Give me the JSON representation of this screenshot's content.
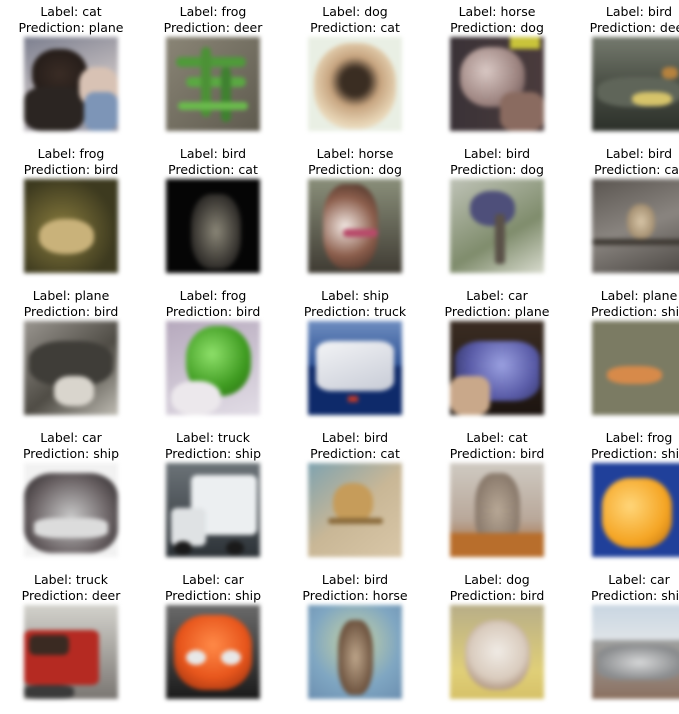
{
  "label_prefix": "Label: ",
  "prediction_prefix": "Prediction: ",
  "samples": [
    {
      "label": "cat",
      "prediction": "plane",
      "scene": "cat"
    },
    {
      "label": "frog",
      "prediction": "deer",
      "scene": "frog_green"
    },
    {
      "label": "dog",
      "prediction": "cat",
      "scene": "dog_fluffy"
    },
    {
      "label": "horse",
      "prediction": "dog",
      "scene": "horse_head"
    },
    {
      "label": "bird",
      "prediction": "deer",
      "scene": "bird_rocks"
    },
    {
      "label": "frog",
      "prediction": "bird",
      "scene": "frog_brown"
    },
    {
      "label": "bird",
      "prediction": "cat",
      "scene": "bird_dark"
    },
    {
      "label": "horse",
      "prediction": "dog",
      "scene": "horse_bridle"
    },
    {
      "label": "bird",
      "prediction": "dog",
      "scene": "bird_perch"
    },
    {
      "label": "bird",
      "prediction": "cat",
      "scene": "bird_branch"
    },
    {
      "label": "plane",
      "prediction": "bird",
      "scene": "plane_gray"
    },
    {
      "label": "frog",
      "prediction": "bird",
      "scene": "frog_bright"
    },
    {
      "label": "ship",
      "prediction": "truck",
      "scene": "ship"
    },
    {
      "label": "car",
      "prediction": "plane",
      "scene": "car_blue"
    },
    {
      "label": "plane",
      "prediction": "ship",
      "scene": "plane_orange"
    },
    {
      "label": "car",
      "prediction": "ship",
      "scene": "car_silver"
    },
    {
      "label": "truck",
      "prediction": "ship",
      "scene": "truck_white"
    },
    {
      "label": "bird",
      "prediction": "cat",
      "scene": "bird_tan"
    },
    {
      "label": "cat",
      "prediction": "bird",
      "scene": "cat_tabby"
    },
    {
      "label": "frog",
      "prediction": "ship",
      "scene": "frog_yellow"
    },
    {
      "label": "truck",
      "prediction": "deer",
      "scene": "truck_red"
    },
    {
      "label": "car",
      "prediction": "ship",
      "scene": "car_orange"
    },
    {
      "label": "bird",
      "prediction": "horse",
      "scene": "bird_ostrich"
    },
    {
      "label": "dog",
      "prediction": "bird",
      "scene": "dog_puppy"
    },
    {
      "label": "car",
      "prediction": "ship",
      "scene": "car_gray"
    }
  ]
}
